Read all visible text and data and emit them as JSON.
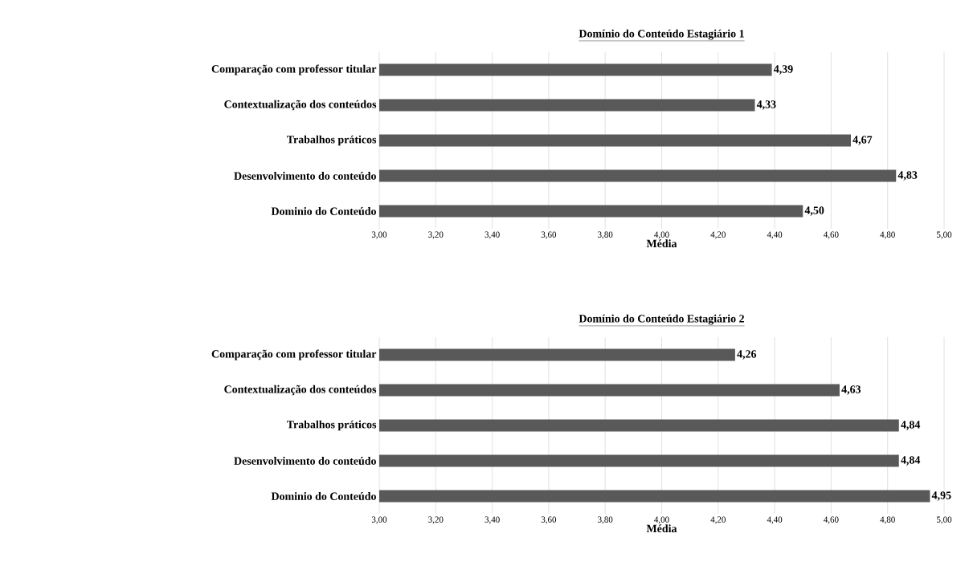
{
  "chart_data": [
    {
      "type": "bar",
      "orientation": "horizontal",
      "title": "Domínio do Conteúdo Estagiário 1",
      "xlabel": "Média",
      "categories": [
        "Comparação com professor titular",
        "Contextualização dos conteúdos",
        "Trabalhos práticos",
        "Desenvolvimento do conteúdo",
        "Dominio do Conteúdo"
      ],
      "values": [
        4.39,
        4.33,
        4.67,
        4.83,
        4.5
      ],
      "value_labels": [
        "4,39",
        "4,33",
        "4,67",
        "4,83",
        "4,50"
      ],
      "color": "#595959",
      "grid": "x",
      "xlim": [
        3,
        5
      ],
      "xticks": [
        {
          "value": 3,
          "label": "3,00"
        },
        {
          "value": 3.2,
          "label": "3,20"
        },
        {
          "value": 3.4,
          "label": "3,40"
        },
        {
          "value": 3.6,
          "label": "3,60"
        },
        {
          "value": 3.8,
          "label": "3,80"
        },
        {
          "value": 4,
          "label": "4,00"
        },
        {
          "value": 4.2,
          "label": "4,20"
        },
        {
          "value": 4.4,
          "label": "4,40"
        },
        {
          "value": 4.6,
          "label": "4,60"
        },
        {
          "value": 4.8,
          "label": "4,80"
        },
        {
          "value": 5,
          "label": "5,00"
        }
      ]
    },
    {
      "type": "bar",
      "orientation": "horizontal",
      "title": "Domínio do Conteúdo Estagiário 2",
      "xlabel": "Média",
      "categories": [
        "Comparação com professor titular",
        "Contextualização dos conteúdos",
        "Trabalhos práticos",
        "Desenvolvimento do conteúdo",
        "Dominio do Conteúdo"
      ],
      "values": [
        4.26,
        4.63,
        4.84,
        4.84,
        4.95
      ],
      "value_labels": [
        "4,26",
        "4,63",
        "4,84",
        "4,84",
        "4,95"
      ],
      "color": "#595959",
      "grid": "x",
      "xlim": [
        3,
        5
      ],
      "xticks": [
        {
          "value": 3,
          "label": "3,00"
        },
        {
          "value": 3.2,
          "label": "3,20"
        },
        {
          "value": 3.4,
          "label": "3,40"
        },
        {
          "value": 3.6,
          "label": "3,60"
        },
        {
          "value": 3.8,
          "label": "3,80"
        },
        {
          "value": 4,
          "label": "4,00"
        },
        {
          "value": 4.2,
          "label": "4,20"
        },
        {
          "value": 4.4,
          "label": "4,40"
        },
        {
          "value": 4.6,
          "label": "4,60"
        },
        {
          "value": 4.8,
          "label": "4,80"
        },
        {
          "value": 5,
          "label": "5,00"
        }
      ]
    }
  ]
}
